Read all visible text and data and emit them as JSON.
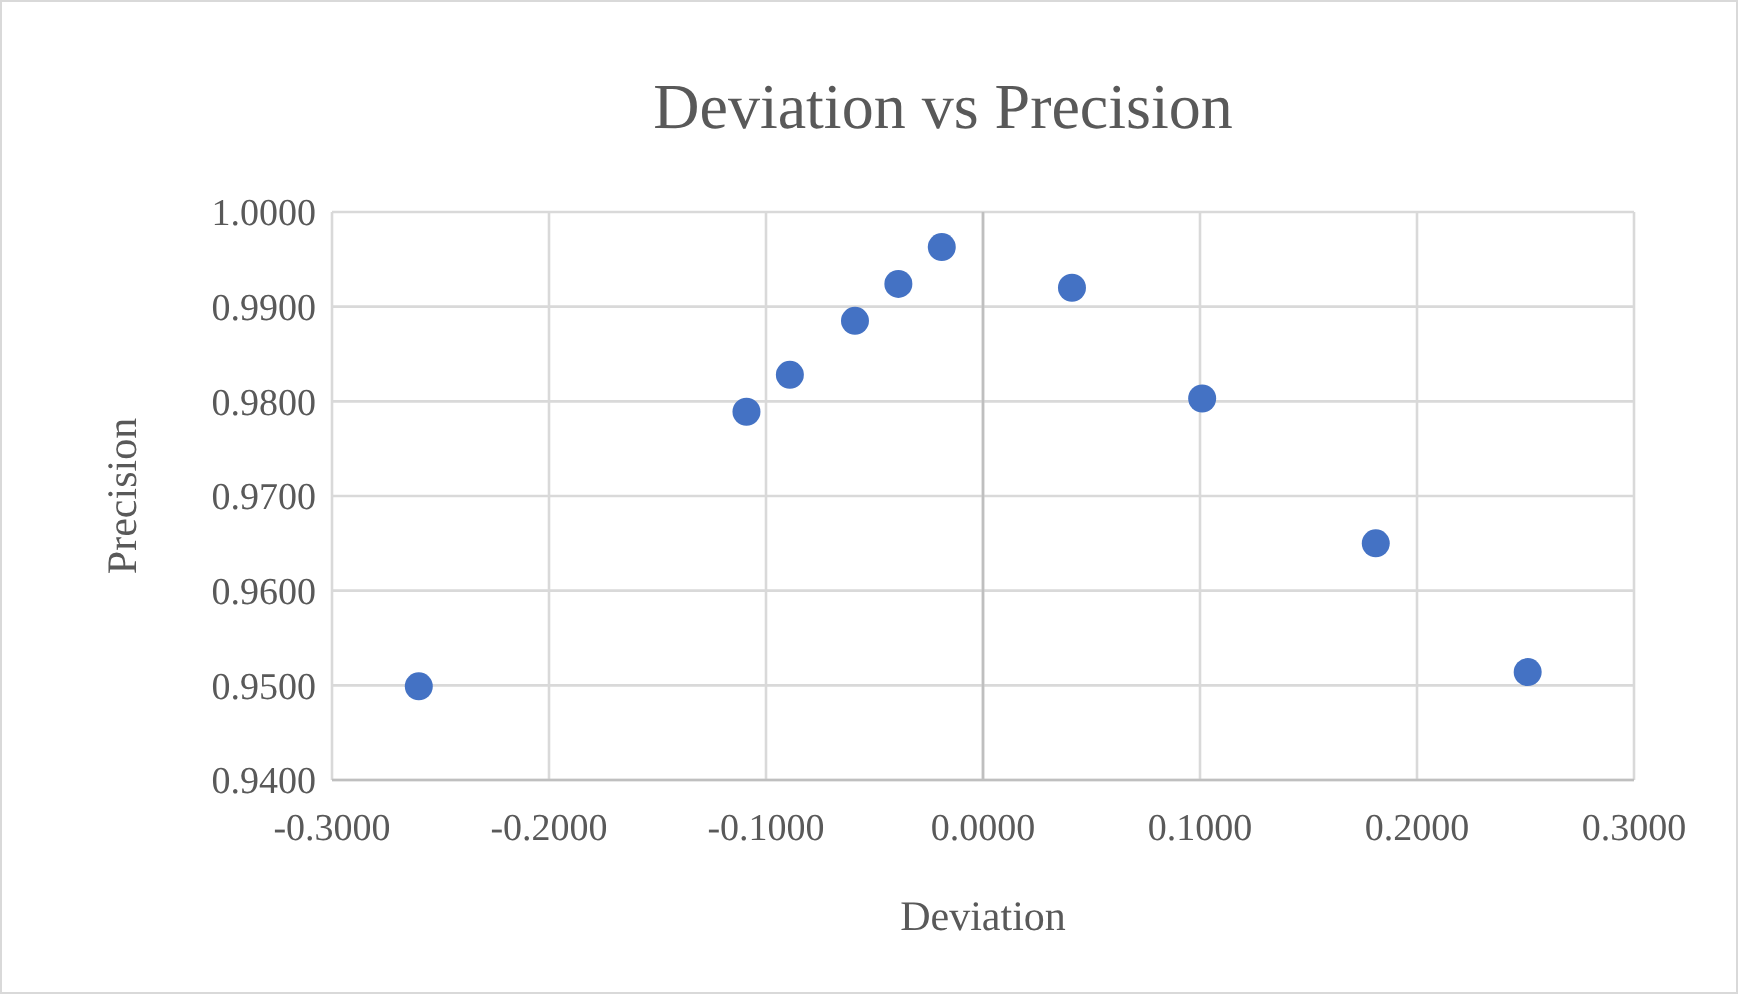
{
  "chart_data": {
    "type": "scatter",
    "title": "Deviation vs Precision",
    "xlabel": "Deviation",
    "ylabel": "Precision",
    "x": [
      -0.26,
      -0.109,
      -0.089,
      -0.059,
      -0.039,
      -0.019,
      0.041,
      0.101,
      0.181,
      0.251
    ],
    "series": [
      {
        "color": "#4472c4",
        "values": [
          0.9499,
          0.9789,
          0.9828,
          0.9885,
          0.9924,
          0.9963,
          0.992,
          0.9803,
          0.965,
          0.9514
        ]
      }
    ],
    "xlim": [
      -0.3,
      0.3
    ],
    "xticks": [
      {
        "value": -0.3,
        "label": "-0.3000"
      },
      {
        "value": -0.2,
        "label": "-0.2000"
      },
      {
        "value": -0.1,
        "label": "-0.1000"
      },
      {
        "value": 0,
        "label": "0.0000"
      },
      {
        "value": 0.1,
        "label": "0.1000"
      },
      {
        "value": 0.2,
        "label": "0.2000"
      },
      {
        "value": 0.3,
        "label": "0.3000"
      }
    ],
    "ylim": [
      0.94,
      1.0
    ],
    "yticks": [
      {
        "value": 0.94,
        "label": "0.9400"
      },
      {
        "value": 0.95,
        "label": "0.9500"
      },
      {
        "value": 0.96,
        "label": "0.9600"
      },
      {
        "value": 0.97,
        "label": "0.9700"
      },
      {
        "value": 0.98,
        "label": "0.9800"
      },
      {
        "value": 0.99,
        "label": "0.9900"
      },
      {
        "value": 1.0,
        "label": "1.0000"
      }
    ],
    "grid": true,
    "marker": "circle"
  }
}
